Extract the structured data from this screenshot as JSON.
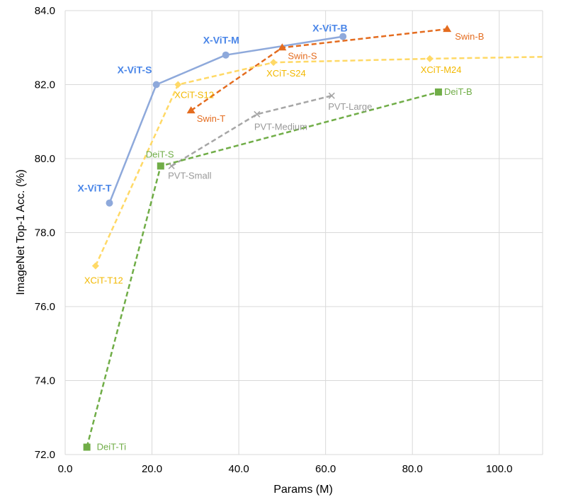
{
  "chart_data": {
    "type": "line",
    "xlabel": "Params (M)",
    "ylabel": "ImageNet Top-1 Acc. (%)",
    "xlim": [
      0,
      110
    ],
    "ylim": [
      72,
      84
    ],
    "x_ticks": [
      "0.0",
      "20.0",
      "40.0",
      "60.0",
      "80.0",
      "100.0"
    ],
    "y_ticks": [
      "72.0",
      "74.0",
      "76.0",
      "78.0",
      "80.0",
      "82.0",
      "84.0"
    ],
    "grid": "horizontal and vertical",
    "series": [
      {
        "family": "X-ViT",
        "color": "#8EA9DB",
        "label_color": "#4A86E8",
        "dash": "solid",
        "marker": "circle",
        "points": [
          {
            "x": 10.2,
            "y": 78.8,
            "label": "X-ViT-T"
          },
          {
            "x": 21.0,
            "y": 82.0,
            "label": "X-ViT-S"
          },
          {
            "x": 37.0,
            "y": 82.8,
            "label": "X-ViT-M"
          },
          {
            "x": 64.0,
            "y": 83.3,
            "label": "X-ViT-B"
          }
        ]
      },
      {
        "family": "Swin",
        "color": "#E46C1F",
        "label_color": "#E46C1F",
        "dash": "dashed",
        "marker": "triangle",
        "points": [
          {
            "x": 29.0,
            "y": 81.3,
            "label": "Swin-T"
          },
          {
            "x": 50.0,
            "y": 83.0,
            "label": "Swin-S"
          },
          {
            "x": 88.0,
            "y": 83.5,
            "label": "Swin-B"
          }
        ]
      },
      {
        "family": "XCiT",
        "color": "#FFD966",
        "label_color": "#F2B800",
        "dash": "dashed",
        "marker": "diamond",
        "points": [
          {
            "x": 7.0,
            "y": 77.1,
            "label": "XCiT-T12"
          },
          {
            "x": 26.0,
            "y": 82.0,
            "label": "XCiT-S12"
          },
          {
            "x": 48.0,
            "y": 82.6,
            "label": "XCiT-S24"
          },
          {
            "x": 84.0,
            "y": 82.7,
            "label": "XCiT-M24"
          },
          {
            "x": 110.0,
            "y": 82.75,
            "label": ""
          }
        ]
      },
      {
        "family": "PVT",
        "color": "#A6A6A6",
        "label_color": "#999999",
        "dash": "dashed",
        "marker": "x",
        "points": [
          {
            "x": 24.5,
            "y": 79.8,
            "label": "PVT-Small"
          },
          {
            "x": 44.2,
            "y": 81.2,
            "label": "PVT-Medium"
          },
          {
            "x": 61.4,
            "y": 81.7,
            "label": "PVT-Large"
          }
        ]
      },
      {
        "family": "DeiT",
        "color": "#70AD47",
        "label_color": "#70AD47",
        "dash": "dashed",
        "marker": "square",
        "points": [
          {
            "x": 5.0,
            "y": 72.2,
            "label": "DeiT-Ti"
          },
          {
            "x": 22.0,
            "y": 79.8,
            "label": "DeiT-S"
          },
          {
            "x": 86.0,
            "y": 81.8,
            "label": "DeiT-B"
          }
        ]
      }
    ]
  }
}
